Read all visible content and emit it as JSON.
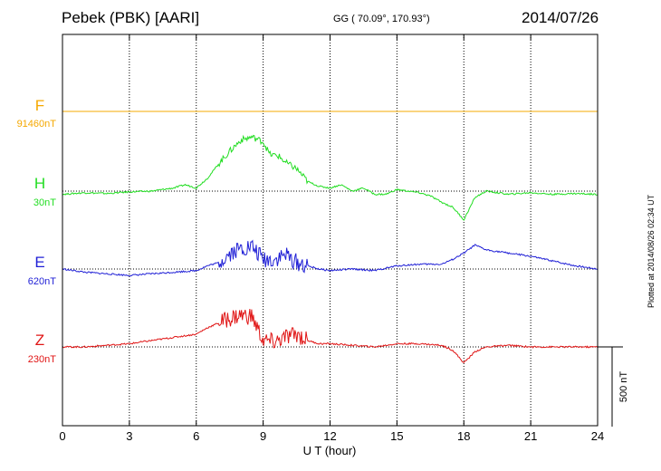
{
  "header": {
    "station": "Pebek (PBK)  [AARI]",
    "coords": "GG ( 70.09°, 170.93°)",
    "date": "2014/07/26"
  },
  "plotted_note": "Plotted at 2014/08/26 02:34 UT",
  "scale_label": "500 nT",
  "chart_data": {
    "type": "line",
    "xlabel": "U T (hour)",
    "xlim": [
      0,
      24
    ],
    "xticks": [
      0,
      3,
      6,
      9,
      12,
      15,
      18,
      21,
      24
    ],
    "grid": true,
    "scale_bar_nT": 500,
    "series": [
      {
        "name": "F",
        "baseline_label": "91460nT",
        "color": "#f5a800",
        "x": [
          0,
          3,
          6,
          9,
          12,
          15,
          18,
          21,
          24
        ],
        "y": [
          0,
          0,
          0,
          0,
          0,
          0,
          0,
          0,
          0
        ]
      },
      {
        "name": "H",
        "baseline_label": "30nT",
        "color": "#22dd22",
        "x": [
          0,
          1,
          2,
          3,
          4,
          5,
          5.5,
          6,
          6.5,
          7,
          7.5,
          8,
          8.5,
          9,
          9.3,
          9.7,
          10,
          10.5,
          11,
          11.5,
          12,
          12.5,
          13,
          13.5,
          14,
          14.5,
          15,
          15.5,
          16,
          16.5,
          17,
          17.5,
          18,
          18.5,
          19,
          20,
          21,
          22,
          23,
          24
        ],
        "y": [
          -20,
          -10,
          -15,
          -5,
          0,
          20,
          40,
          20,
          80,
          170,
          250,
          320,
          340,
          310,
          230,
          220,
          180,
          140,
          60,
          30,
          20,
          40,
          0,
          20,
          -20,
          -20,
          10,
          0,
          -10,
          -30,
          -70,
          -100,
          -180,
          -40,
          0,
          -20,
          -10,
          -20,
          -15,
          -20
        ]
      },
      {
        "name": "E",
        "baseline_label": "620nT",
        "color": "#1f1fd6",
        "x": [
          0,
          1,
          2,
          3,
          4,
          5,
          6,
          6.5,
          7,
          7.5,
          8,
          8.5,
          9,
          9.5,
          10,
          10.5,
          11,
          11.5,
          12,
          13,
          14,
          15,
          16,
          17,
          17.5,
          18,
          18.5,
          19,
          20,
          21,
          22,
          23,
          24
        ],
        "y": [
          0,
          -20,
          -30,
          -40,
          -30,
          -20,
          -10,
          20,
          40,
          100,
          130,
          140,
          60,
          60,
          90,
          40,
          20,
          0,
          -10,
          0,
          -10,
          20,
          30,
          30,
          60,
          100,
          150,
          120,
          100,
          80,
          50,
          20,
          0
        ]
      },
      {
        "name": "Z",
        "baseline_label": "230nT",
        "color": "#e01515",
        "x": [
          0,
          1,
          2,
          3,
          4,
          5,
          6,
          6.5,
          7,
          7.5,
          8,
          8.5,
          9,
          9.5,
          10,
          10.5,
          11,
          11.5,
          12,
          13,
          14,
          15,
          16,
          17,
          17.5,
          18,
          18.5,
          19,
          20,
          21,
          22,
          23,
          24
        ],
        "y": [
          0,
          0,
          10,
          20,
          40,
          60,
          80,
          120,
          150,
          180,
          200,
          190,
          40,
          30,
          60,
          80,
          40,
          20,
          20,
          10,
          0,
          20,
          20,
          10,
          -20,
          -100,
          -30,
          0,
          10,
          0,
          0,
          0,
          0
        ]
      }
    ]
  }
}
